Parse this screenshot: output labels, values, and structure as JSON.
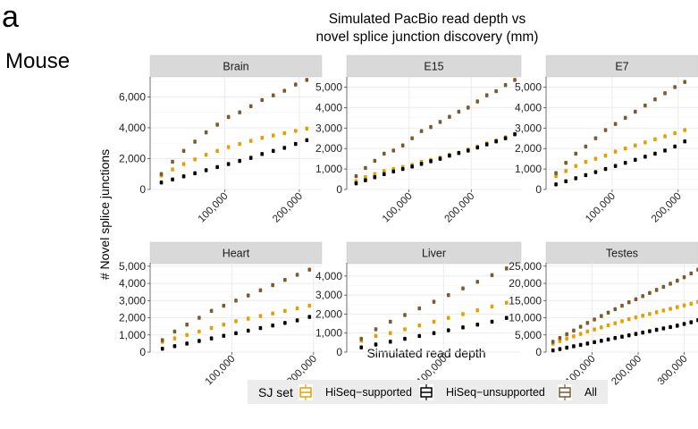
{
  "panel_letter": "a",
  "row_label": "Mouse",
  "figure_title_line1": "Simulated PacBio read depth vs",
  "figure_title_line2": "novel splice junction discovery (mm)",
  "xlabel": "Simulated read depth",
  "ylabel": "# Novel splice junctions",
  "legend": {
    "title": "SJ set",
    "items": [
      {
        "label": "HiSeq−supported",
        "color": "#E69F00"
      },
      {
        "label": "HiSeq−unsupported",
        "color": "#000000"
      },
      {
        "label": "All",
        "color": "#7B5B2E"
      }
    ]
  },
  "colors": {
    "strip_bg": "#D9D9D9",
    "grid": "#EBEBEB",
    "supported": "#E69F00",
    "unsupported": "#000000",
    "all": "#7B5B2E"
  },
  "chart_data": [
    {
      "type": "scatter",
      "title": "Brain",
      "xlim": [
        0,
        230000
      ],
      "ylim": [
        0,
        7300
      ],
      "xticks": [
        100000,
        200000
      ],
      "xtick_labels": [
        "100,000",
        "200,000"
      ],
      "yticks": [
        0,
        2000,
        4000,
        6000
      ],
      "ytick_labels": [
        "0",
        "2,000",
        "4,000",
        "6,000"
      ],
      "x": [
        15000,
        30000,
        45000,
        60000,
        75000,
        90000,
        105000,
        120000,
        135000,
        150000,
        165000,
        180000,
        195000,
        210000
      ],
      "series": [
        {
          "name": "HiSeq−supported",
          "values": [
            900,
            1300,
            1650,
            1950,
            2250,
            2500,
            2750,
            2950,
            3150,
            3350,
            3500,
            3650,
            3800,
            3950
          ]
        },
        {
          "name": "HiSeq−unsupported",
          "values": [
            450,
            650,
            850,
            1050,
            1250,
            1450,
            1650,
            1850,
            2050,
            2300,
            2500,
            2700,
            2950,
            3200
          ]
        },
        {
          "name": "All",
          "values": [
            1000,
            1800,
            2500,
            3100,
            3700,
            4200,
            4700,
            5000,
            5400,
            5800,
            6100,
            6400,
            6800,
            7100
          ]
        }
      ]
    },
    {
      "type": "scatter",
      "title": "E15",
      "xlim": [
        0,
        280000
      ],
      "ylim": [
        0,
        5500
      ],
      "xticks": [
        100000,
        200000
      ],
      "xtick_labels": [
        "100,000",
        "200,000"
      ],
      "yticks": [
        0,
        1000,
        2000,
        3000,
        4000,
        5000
      ],
      "ytick_labels": [
        "0",
        "1,000",
        "2,000",
        "3,000",
        "4,000",
        "5,000"
      ],
      "x": [
        15000,
        30000,
        45000,
        60000,
        75000,
        90000,
        105000,
        120000,
        135000,
        150000,
        165000,
        180000,
        195000,
        210000,
        225000,
        240000,
        255000,
        270000
      ],
      "series": [
        {
          "name": "HiSeq−supported",
          "values": [
            400,
            600,
            750,
            900,
            1000,
            1100,
            1200,
            1350,
            1450,
            1550,
            1700,
            1800,
            1950,
            2100,
            2250,
            2400,
            2550,
            2700
          ]
        },
        {
          "name": "HiSeq−unsupported",
          "values": [
            300,
            450,
            600,
            750,
            880,
            1000,
            1120,
            1250,
            1380,
            1500,
            1650,
            1780,
            1900,
            2050,
            2200,
            2350,
            2500,
            2700
          ]
        },
        {
          "name": "All",
          "values": [
            650,
            1050,
            1400,
            1750,
            1900,
            2150,
            2500,
            2850,
            3050,
            3300,
            3550,
            3800,
            4000,
            4300,
            4600,
            4800,
            5100,
            5350
          ]
        }
      ]
    },
    {
      "type": "scatter",
      "title": "E7",
      "xlim": [
        0,
        230000
      ],
      "ylim": [
        0,
        5500
      ],
      "xticks": [
        100000,
        200000
      ],
      "xtick_labels": [
        "100,000",
        "200,000"
      ],
      "yticks": [
        0,
        1000,
        2000,
        3000,
        4000,
        5000
      ],
      "ytick_labels": [
        "0",
        "1,000",
        "2,000",
        "3,000",
        "4,000",
        "5,000"
      ],
      "x": [
        15000,
        30000,
        45000,
        60000,
        75000,
        90000,
        105000,
        120000,
        135000,
        150000,
        165000,
        180000,
        195000,
        210000
      ],
      "series": [
        {
          "name": "HiSeq−supported",
          "values": [
            650,
            900,
            1150,
            1350,
            1500,
            1650,
            1850,
            2000,
            2150,
            2300,
            2450,
            2600,
            2750,
            2900
          ]
        },
        {
          "name": "HiSeq−unsupported",
          "values": [
            250,
            400,
            550,
            700,
            850,
            1000,
            1150,
            1300,
            1450,
            1600,
            1750,
            1900,
            2100,
            2350
          ]
        },
        {
          "name": "All",
          "values": [
            800,
            1300,
            1750,
            2100,
            2500,
            2900,
            3200,
            3500,
            3800,
            4100,
            4400,
            4700,
            5000,
            5250
          ]
        }
      ]
    },
    {
      "type": "scatter",
      "title": "Heart",
      "xlim": [
        0,
        210000
      ],
      "ylim": [
        0,
        5200
      ],
      "xticks": [
        100000,
        200000
      ],
      "xtick_labels": [
        "100,000",
        "200,000"
      ],
      "yticks": [
        0,
        1000,
        2000,
        3000,
        4000,
        5000
      ],
      "ytick_labels": [
        "0",
        "1,000",
        "2,000",
        "3,000",
        "4,000",
        "5,000"
      ],
      "x": [
        15000,
        30000,
        45000,
        60000,
        75000,
        90000,
        105000,
        120000,
        135000,
        150000,
        165000,
        180000,
        195000
      ],
      "series": [
        {
          "name": "HiSeq−supported",
          "values": [
            600,
            800,
            1000,
            1200,
            1400,
            1600,
            1800,
            1950,
            2100,
            2250,
            2400,
            2550,
            2700
          ]
        },
        {
          "name": "HiSeq−unsupported",
          "values": [
            200,
            350,
            500,
            650,
            800,
            950,
            1100,
            1250,
            1400,
            1550,
            1700,
            1850,
            2050
          ]
        },
        {
          "name": "All",
          "values": [
            700,
            1200,
            1600,
            2000,
            2400,
            2700,
            3000,
            3300,
            3600,
            3900,
            4200,
            4500,
            4800
          ]
        }
      ]
    },
    {
      "type": "scatter",
      "title": "Liver",
      "xlim": [
        0,
        180000
      ],
      "ylim": [
        0,
        4700
      ],
      "xticks": [
        100000
      ],
      "xtick_labels": [
        "100,000"
      ],
      "yticks": [
        0,
        1000,
        2000,
        3000,
        4000
      ],
      "ytick_labels": [
        "0",
        "1,000",
        "2,000",
        "3,000",
        "4,000"
      ],
      "x": [
        15000,
        30000,
        45000,
        60000,
        75000,
        90000,
        105000,
        120000,
        135000,
        150000,
        165000
      ],
      "series": [
        {
          "name": "HiSeq−supported",
          "values": [
            600,
            850,
            1000,
            1200,
            1400,
            1600,
            1800,
            2000,
            2200,
            2400,
            2600
          ]
        },
        {
          "name": "HiSeq−unsupported",
          "values": [
            250,
            400,
            550,
            700,
            850,
            1000,
            1150,
            1300,
            1450,
            1600,
            1800
          ]
        },
        {
          "name": "All",
          "values": [
            700,
            1200,
            1600,
            1950,
            2300,
            2650,
            3000,
            3350,
            3700,
            4050,
            4400
          ]
        }
      ]
    },
    {
      "type": "scatter",
      "title": "Testes",
      "xlim": [
        0,
        330000
      ],
      "ylim": [
        0,
        26000
      ],
      "xticks": [
        100000,
        200000,
        300000
      ],
      "xtick_labels": [
        "100,000",
        "200,000",
        "300,000"
      ],
      "yticks": [
        0,
        5000,
        10000,
        15000,
        20000,
        25000
      ],
      "ytick_labels": [
        "0",
        "5,000",
        "10,000",
        "15,000",
        "20,000",
        "25,000"
      ],
      "x": [
        15000,
        30000,
        45000,
        60000,
        75000,
        90000,
        105000,
        120000,
        135000,
        150000,
        165000,
        180000,
        195000,
        210000,
        225000,
        240000,
        255000,
        270000,
        285000,
        300000,
        315000,
        330000
      ],
      "series": [
        {
          "name": "HiSeq−supported",
          "values": [
            2500,
            3200,
            3900,
            4600,
            5300,
            6000,
            6600,
            7200,
            7800,
            8400,
            9000,
            9600,
            10100,
            10600,
            11100,
            11600,
            12100,
            12600,
            13100,
            13600,
            14100,
            14600
          ]
        },
        {
          "name": "HiSeq−unsupported",
          "values": [
            500,
            900,
            1300,
            1700,
            2100,
            2500,
            2900,
            3300,
            3700,
            4100,
            4500,
            4900,
            5300,
            5700,
            6100,
            6500,
            6900,
            7300,
            7700,
            8200,
            8700,
            9300
          ]
        },
        {
          "name": "All",
          "values": [
            3000,
            4100,
            5200,
            6300,
            7400,
            8500,
            9500,
            10500,
            11500,
            12500,
            13500,
            14500,
            15400,
            16300,
            17200,
            18100,
            19000,
            19900,
            20800,
            21800,
            22900,
            24000
          ]
        }
      ]
    }
  ]
}
